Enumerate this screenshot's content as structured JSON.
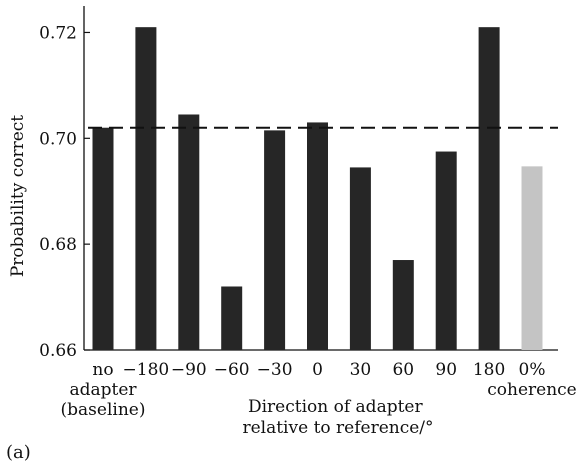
{
  "panel_label": "(a)",
  "chart_data": {
    "type": "bar",
    "categories": [
      "no adapter (baseline)",
      "−180",
      "−90",
      "−60",
      "−30",
      "0",
      "30",
      "60",
      "90",
      "180",
      "0% coherence"
    ],
    "category_lines": [
      [
        "no",
        "adapter",
        "(baseline)"
      ],
      [
        "−180"
      ],
      [
        "−90"
      ],
      [
        "−60"
      ],
      [
        "−30"
      ],
      [
        "0"
      ],
      [
        "30"
      ],
      [
        "60"
      ],
      [
        "90"
      ],
      [
        "180"
      ],
      [
        "0%",
        "coherence"
      ]
    ],
    "values": [
      0.702,
      0.721,
      0.7045,
      0.672,
      0.7015,
      0.703,
      0.6945,
      0.677,
      0.6975,
      0.721,
      0.6947
    ],
    "bar_colors": [
      "#262626",
      "#262626",
      "#262626",
      "#262626",
      "#262626",
      "#262626",
      "#262626",
      "#262626",
      "#262626",
      "#262626",
      "#c4c4c4"
    ],
    "baseline_reference": 0.702,
    "ylabel": "Probability correct",
    "xlabel_lines": [
      "Direction of adapter",
      "relative to reference/°"
    ],
    "ylim": [
      0.66,
      0.725
    ],
    "yticks": [
      0.66,
      0.68,
      0.7,
      0.72
    ],
    "ytick_labels": [
      "0.66",
      "0.68",
      "0.70",
      "0.72"
    ],
    "grid": false,
    "legend": "none"
  }
}
